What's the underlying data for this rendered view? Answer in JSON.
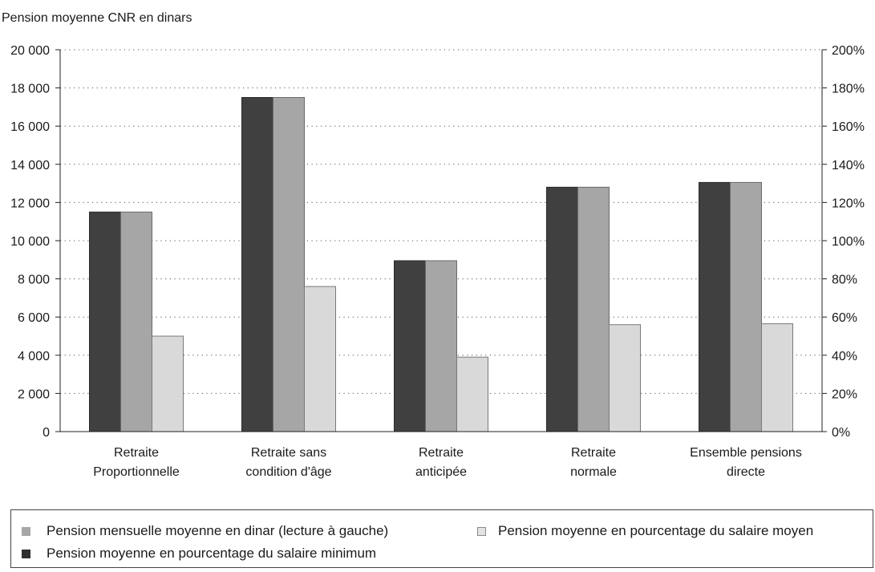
{
  "chart_data": {
    "type": "bar",
    "title": "Pension moyenne CNR en dinars",
    "categories": [
      [
        "Retraite",
        "Proportionnelle"
      ],
      [
        "Retraite sans",
        "condition d'âge"
      ],
      [
        "Retraite",
        "anticipée"
      ],
      [
        "Retraite",
        "normale"
      ],
      [
        "Ensemble pensions",
        "directe"
      ]
    ],
    "y_left": {
      "min": 0,
      "max": 20000,
      "step": 2000,
      "ticks": [
        "0",
        "2 000",
        "4 000",
        "6 000",
        "8 000",
        "10 000",
        "12 000",
        "14 000",
        "16 000",
        "18 000",
        "20 000"
      ]
    },
    "y_right": {
      "min": 0,
      "max": 200,
      "step": 20,
      "unit": "%",
      "ticks": [
        "0%",
        "20%",
        "40%",
        "60%",
        "80%",
        "100%",
        "120%",
        "140%",
        "160%",
        "180%",
        "200%"
      ]
    },
    "grid": "dotted horizontal",
    "series": [
      {
        "name": "Pension moyenne en pourcentage du salaire minimum",
        "axis": "right",
        "color": "#404040",
        "values": [
          115,
          175,
          89.5,
          128,
          130.5
        ]
      },
      {
        "name": "Pension mensuelle moyenne en dinar (lecture à gauche)",
        "axis": "left",
        "color": "#a6a6a6",
        "values": [
          11500,
          17500,
          8950,
          12800,
          13050
        ]
      },
      {
        "name": "Pension moyenne en pourcentage du salaire moyen",
        "axis": "right",
        "color": "#d9d9d9",
        "values": [
          50,
          76,
          39,
          56,
          56.5
        ]
      }
    ]
  },
  "legend": {
    "items": [
      {
        "label": "Pension mensuelle moyenne en dinar (lecture à gauche)",
        "color": "#a6a6a6"
      },
      {
        "label": "Pension moyenne en pourcentage du salaire moyen",
        "color": "#d9d9d9"
      },
      {
        "label": "Pension moyenne en pourcentage du salaire minimum",
        "color": "#404040"
      }
    ]
  }
}
